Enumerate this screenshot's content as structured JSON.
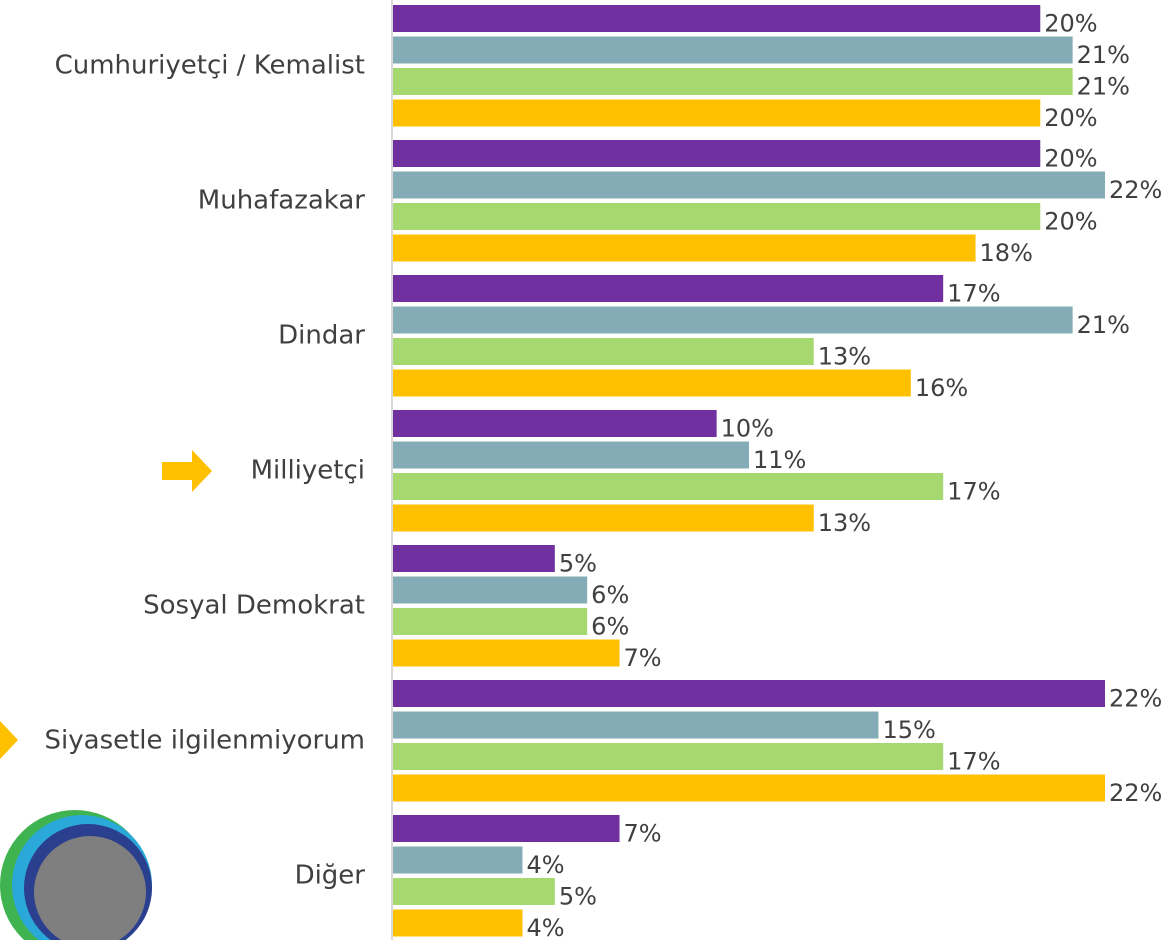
{
  "chart_data": {
    "type": "bar",
    "orientation": "horizontal",
    "categories": [
      "Cumhuriyetçi / Kemalist",
      "Muhafazakar",
      "Dindar",
      "Milliyetçi",
      "Sosyal Demokrat",
      "Siyasetle ilgilenmiyorum",
      "Diğer"
    ],
    "series": [
      {
        "color": "#7030a0",
        "values": [
          20,
          20,
          17,
          10,
          5,
          22,
          7
        ],
        "value_labels": [
          "20%",
          "20%",
          "17%",
          "10%",
          "5%",
          "22%",
          "7%"
        ]
      },
      {
        "color": "#84acb6",
        "values": [
          21,
          22,
          21,
          11,
          6,
          15,
          4
        ],
        "value_labels": [
          "21%",
          "22%",
          "21%",
          "11%",
          "6%",
          "15%",
          "4%"
        ]
      },
      {
        "color": "#a5d86e",
        "values": [
          21,
          20,
          13,
          17,
          6,
          17,
          5
        ],
        "value_labels": [
          "21%",
          "20%",
          "13%",
          "17%",
          "6%",
          "17%",
          "5%"
        ]
      },
      {
        "color": "#ffc000",
        "values": [
          20,
          18,
          16,
          13,
          7,
          22,
          4
        ],
        "value_labels": [
          "20%",
          "18%",
          "16%",
          "13%",
          "7%",
          "22%",
          "4%"
        ]
      }
    ]
  }
}
